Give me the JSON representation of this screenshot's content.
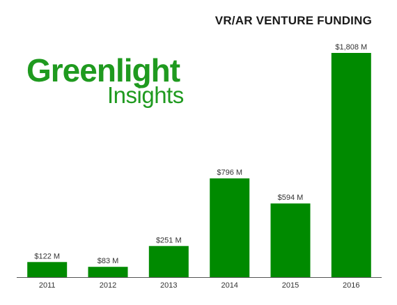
{
  "logo": {
    "main": "Greenlight",
    "sub": "Insights"
  },
  "chart_data": {
    "type": "bar",
    "title": "VR/AR VENTURE FUNDING",
    "categories": [
      "2011",
      "2012",
      "2013",
      "2014",
      "2015",
      "2016"
    ],
    "values": [
      122,
      83,
      251,
      796,
      594,
      1808
    ],
    "data_labels": [
      "$122 M",
      "$83 M",
      "$251 M",
      "$796 M",
      "$594 M",
      "$1,808 M"
    ],
    "xlabel": "",
    "ylabel": "",
    "ylim": [
      0,
      1808
    ],
    "grid": false,
    "bar_color": "#008a00",
    "axis_color": "#555555"
  }
}
